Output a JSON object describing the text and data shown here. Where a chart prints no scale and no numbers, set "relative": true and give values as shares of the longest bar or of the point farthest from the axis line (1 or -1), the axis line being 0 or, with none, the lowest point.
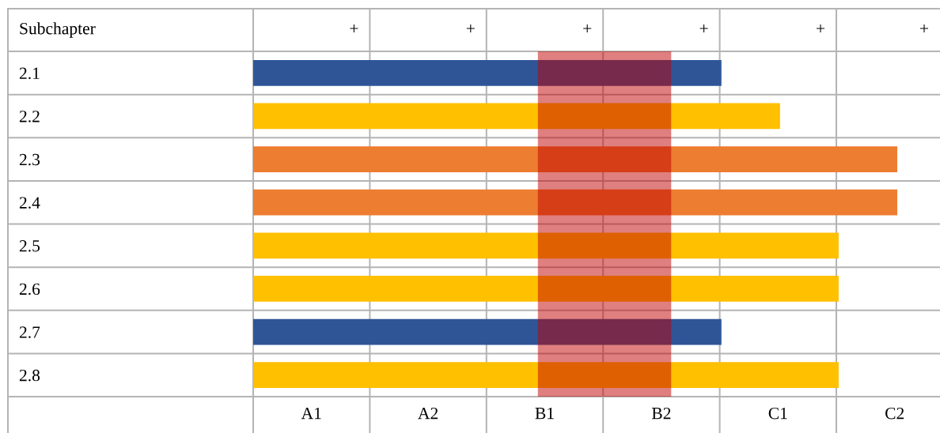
{
  "chart_data": {
    "type": "bar",
    "orientation": "horizontal",
    "relative": true,
    "ylabel": "Subchapter",
    "categories": [
      "2.1",
      "2.2",
      "2.3",
      "2.4",
      "2.5",
      "2.6",
      "2.7",
      "2.8"
    ],
    "values": [
      0.727,
      0.818,
      1,
      1,
      0.909,
      0.909,
      0.727,
      0.909
    ],
    "colors": [
      "#2f5597",
      "#ffc000",
      "#ed7d31",
      "#ed7d31",
      "#ffc000",
      "#ffc000",
      "#2f5597",
      "#ffc000"
    ],
    "bands": [
      {
        "axis": "x",
        "from": 0.442,
        "to": 0.649,
        "color": "#c00000"
      }
    ],
    "annotations": [
      "+",
      "+",
      "+",
      "+",
      "+",
      "+",
      "A1",
      "A2",
      "B1",
      "B2",
      "C1",
      "C2"
    ],
    "grid": true
  }
}
